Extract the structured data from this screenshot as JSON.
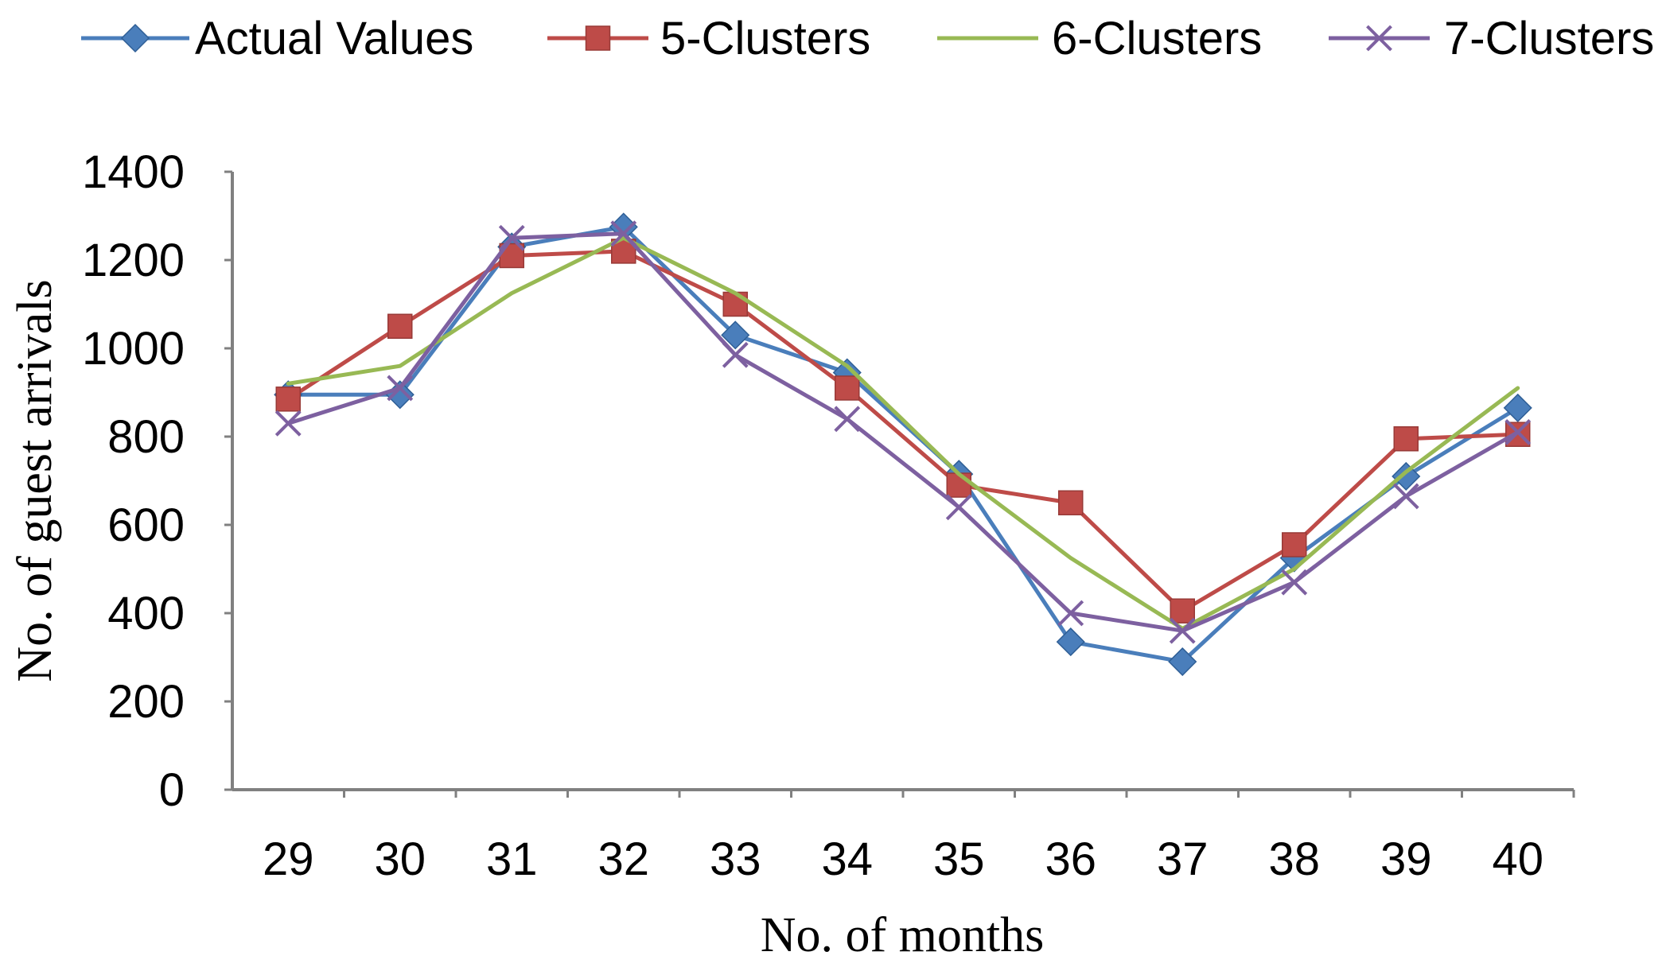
{
  "chart_data": {
    "type": "line",
    "title": "",
    "xlabel": "No. of months",
    "ylabel": "No. of guest arrivals",
    "categories": [
      "29",
      "30",
      "31",
      "32",
      "33",
      "34",
      "35",
      "36",
      "37",
      "38",
      "39",
      "40"
    ],
    "yticks": [
      "0",
      "200",
      "400",
      "600",
      "800",
      "1000",
      "1200",
      "1400"
    ],
    "ylim": [
      0,
      1400
    ],
    "grid": false,
    "legend_position": "top",
    "series": [
      {
        "name": "Actual Values",
        "color": "#4A7EBB",
        "marker": "diamond",
        "values": [
          895,
          895,
          1230,
          1275,
          1030,
          945,
          715,
          335,
          290,
          525,
          710,
          865
        ]
      },
      {
        "name": "5-Clusters",
        "color": "#BE4B48",
        "marker": "square",
        "values": [
          885,
          1050,
          1210,
          1220,
          1100,
          910,
          690,
          650,
          405,
          555,
          795,
          805
        ]
      },
      {
        "name": "6-Clusters",
        "color": "#98B954",
        "marker": "none",
        "values": [
          920,
          960,
          1125,
          1250,
          1125,
          960,
          715,
          525,
          365,
          500,
          720,
          910
        ]
      },
      {
        "name": "7-Clusters",
        "color": "#7D60A0",
        "marker": "x",
        "values": [
          830,
          910,
          1250,
          1260,
          985,
          840,
          640,
          400,
          360,
          470,
          665,
          810
        ]
      }
    ]
  }
}
